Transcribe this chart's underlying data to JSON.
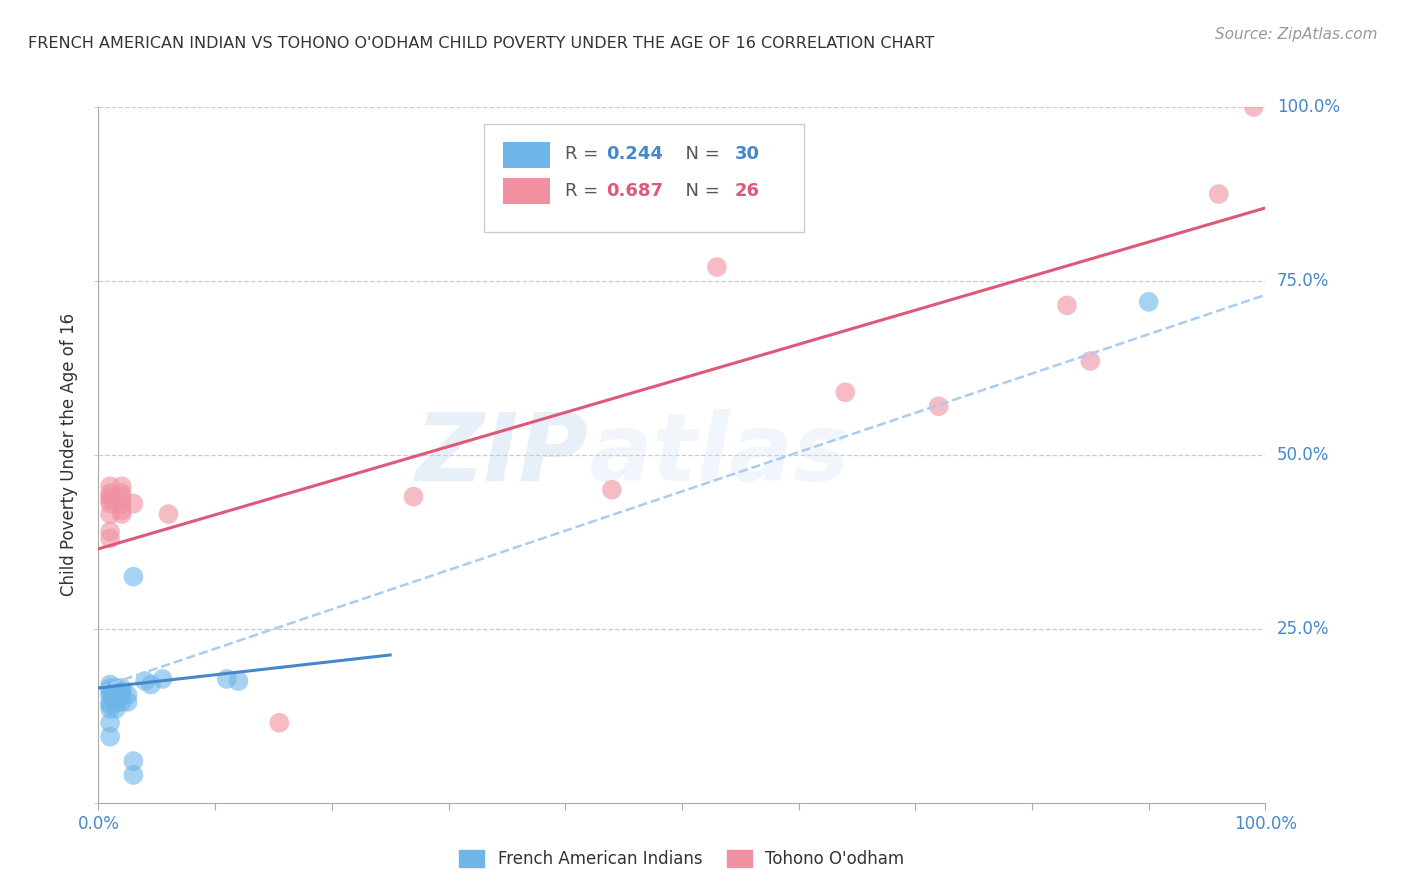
{
  "title": "FRENCH AMERICAN INDIAN VS TOHONO O'ODHAM CHILD POVERTY UNDER THE AGE OF 16 CORRELATION CHART",
  "source": "Source: ZipAtlas.com",
  "ylabel": "Child Poverty Under the Age of 16",
  "xlabel": "",
  "xlim": [
    0,
    1
  ],
  "ylim": [
    0,
    1
  ],
  "legend_r1": "R = 0.244",
  "legend_n1": "N = 30",
  "legend_r2": "R = 0.687",
  "legend_n2": "N = 26",
  "legend_label1": "French American Indians",
  "legend_label2": "Tohono O'odham",
  "color_blue": "#6eb5e8",
  "color_pink": "#f090a0",
  "color_line_blue": "#4488cc",
  "color_line_pink": "#e05878",
  "color_dashed": "#aaccee",
  "watermark_zip": "ZIP",
  "watermark_atlas": "atlas",
  "background_color": "#ffffff",
  "grid_color": "#cccccc",
  "blue_points": [
    [
      0.01,
      0.095
    ],
    [
      0.01,
      0.115
    ],
    [
      0.01,
      0.135
    ],
    [
      0.01,
      0.14
    ],
    [
      0.01,
      0.145
    ],
    [
      0.01,
      0.155
    ],
    [
      0.01,
      0.16
    ],
    [
      0.01,
      0.165
    ],
    [
      0.01,
      0.17
    ],
    [
      0.015,
      0.135
    ],
    [
      0.015,
      0.145
    ],
    [
      0.015,
      0.15
    ],
    [
      0.015,
      0.155
    ],
    [
      0.015,
      0.16
    ],
    [
      0.015,
      0.165
    ],
    [
      0.02,
      0.145
    ],
    [
      0.02,
      0.155
    ],
    [
      0.02,
      0.16
    ],
    [
      0.02,
      0.165
    ],
    [
      0.025,
      0.145
    ],
    [
      0.025,
      0.155
    ],
    [
      0.03,
      0.325
    ],
    [
      0.04,
      0.175
    ],
    [
      0.045,
      0.17
    ],
    [
      0.055,
      0.178
    ],
    [
      0.11,
      0.178
    ],
    [
      0.12,
      0.175
    ],
    [
      0.03,
      0.06
    ],
    [
      0.03,
      0.04
    ],
    [
      0.9,
      0.72
    ]
  ],
  "pink_points": [
    [
      0.01,
      0.415
    ],
    [
      0.01,
      0.43
    ],
    [
      0.01,
      0.435
    ],
    [
      0.01,
      0.44
    ],
    [
      0.01,
      0.445
    ],
    [
      0.01,
      0.455
    ],
    [
      0.01,
      0.38
    ],
    [
      0.01,
      0.39
    ],
    [
      0.02,
      0.415
    ],
    [
      0.02,
      0.42
    ],
    [
      0.02,
      0.43
    ],
    [
      0.02,
      0.44
    ],
    [
      0.02,
      0.445
    ],
    [
      0.02,
      0.455
    ],
    [
      0.03,
      0.43
    ],
    [
      0.06,
      0.415
    ],
    [
      0.155,
      0.115
    ],
    [
      0.27,
      0.44
    ],
    [
      0.44,
      0.45
    ],
    [
      0.53,
      0.77
    ],
    [
      0.64,
      0.59
    ],
    [
      0.72,
      0.57
    ],
    [
      0.83,
      0.715
    ],
    [
      0.85,
      0.635
    ],
    [
      0.96,
      0.875
    ],
    [
      0.99,
      1.0
    ]
  ],
  "blue_line": [
    [
      0.0,
      0.165
    ],
    [
      1.0,
      0.355
    ]
  ],
  "pink_line": [
    [
      0.0,
      0.365
    ],
    [
      1.0,
      0.855
    ]
  ],
  "blue_dashed_line": [
    [
      0.0,
      0.165
    ],
    [
      1.0,
      0.73
    ]
  ]
}
